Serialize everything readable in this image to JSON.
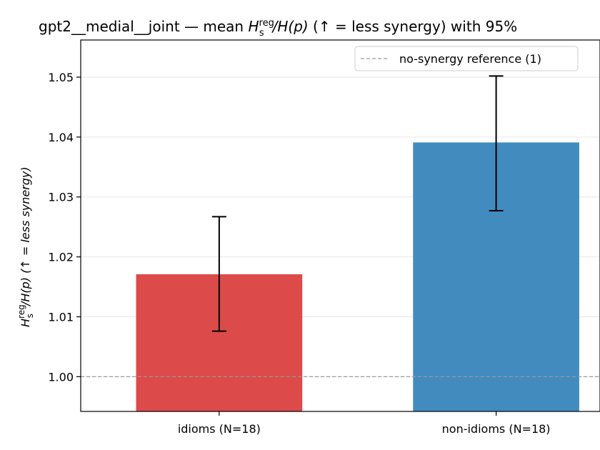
{
  "chart_data": {
    "type": "bar",
    "title_prefix": "gpt2__medial__joint — mean ",
    "title_metric_base": "H",
    "title_metric_sub": "s",
    "title_metric_sup": "reg",
    "title_metric_tail": "/H(p)",
    "title_suffix": "  (↑ = less synergy) with 95%",
    "ylabel_base": "H",
    "ylabel_sub": "s",
    "ylabel_sup": "reg",
    "ylabel_tail": "/H(p)  (↑ = less synergy)",
    "xlabel": "",
    "categories": [
      "idioms (N=18)",
      "non-idioms (N=18)"
    ],
    "values": [
      1.0171,
      1.0391
    ],
    "ci_low": [
      1.0076,
      1.0277
    ],
    "ci_high": [
      1.0267,
      1.0502
    ],
    "colors": [
      "#dc4a4a",
      "#428bbf"
    ],
    "ylim": [
      0.9942,
      1.0562
    ],
    "yticks": [
      1.0,
      1.01,
      1.02,
      1.03,
      1.04,
      1.05
    ],
    "ytick_labels": [
      "1.00",
      "1.01",
      "1.02",
      "1.03",
      "1.04",
      "1.05"
    ],
    "grid": true,
    "reference_line": {
      "value": 1.0,
      "label": "no-synergy reference (1)",
      "color": "#999999"
    },
    "legend_position": "top-right"
  }
}
